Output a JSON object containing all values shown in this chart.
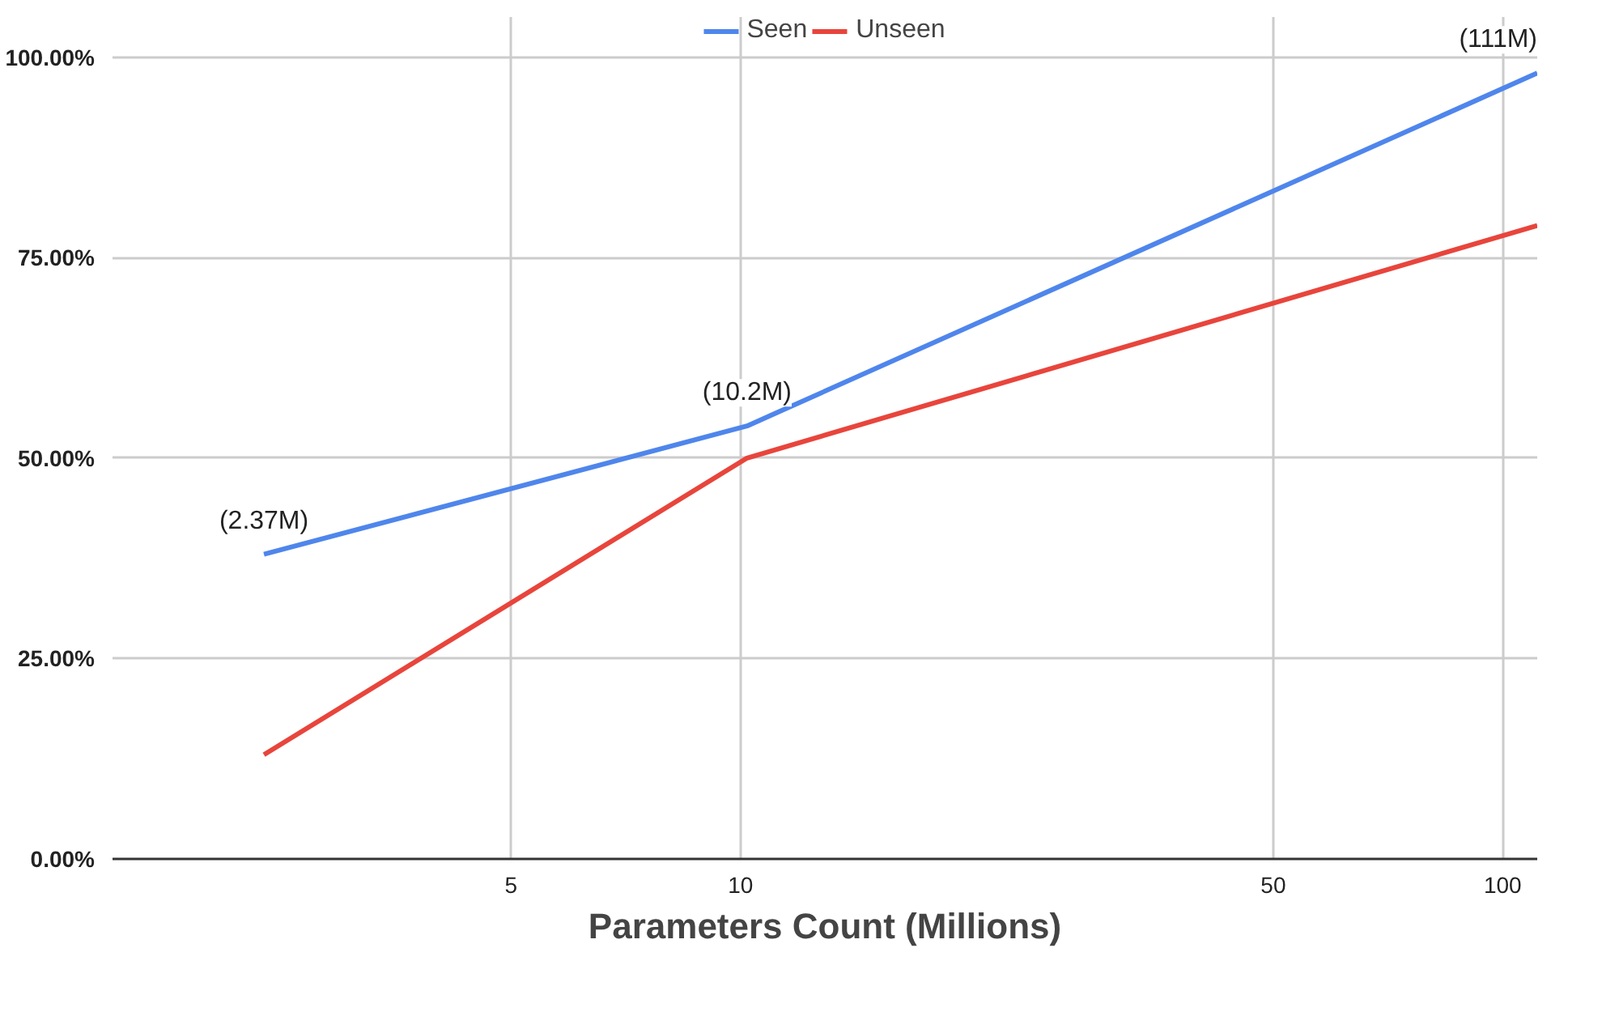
{
  "chart_data": {
    "type": "line",
    "xlabel": "Parameters Count (Millions)",
    "log": "x",
    "xlim": [
      1.5,
      111
    ],
    "xticks": [
      5,
      10,
      50,
      100
    ],
    "ylim": [
      0,
      105
    ],
    "yticks": [
      {
        "value": 0,
        "label": "0.00%"
      },
      {
        "value": 25,
        "label": "25.00%"
      },
      {
        "value": 50,
        "label": "50.00%"
      },
      {
        "value": 75,
        "label": "75.00%"
      },
      {
        "value": 100,
        "label": "100.00%"
      }
    ],
    "x": [
      2.37,
      10.2,
      111
    ],
    "series": [
      {
        "name": "Seen",
        "color": "#4f86ec",
        "values": [
          38,
          54,
          98
        ]
      },
      {
        "name": "Unseen",
        "color": "#e8453c",
        "values": [
          13,
          50,
          79
        ]
      }
    ],
    "annotations": [
      {
        "text": "(2.37M)",
        "x": 2.37,
        "y": 38
      },
      {
        "text": "(10.2M)",
        "x": 10.2,
        "y": 54
      },
      {
        "text": "(111M)",
        "x": 111,
        "y": 98
      }
    ],
    "grid": true,
    "legend": "top",
    "marker": "none",
    "line_style": "solid"
  }
}
